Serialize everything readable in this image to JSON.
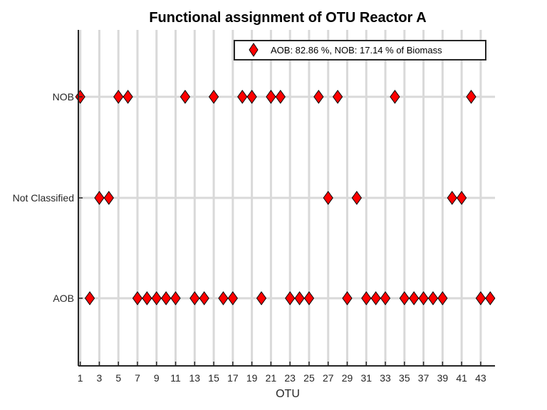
{
  "chart_data": {
    "type": "scatter",
    "title": "Functional assignment of OTU Reactor A",
    "xlabel": "OTU",
    "ylabel": "",
    "xlim": [
      0.8,
      44.5
    ],
    "x_ticks": [
      1,
      3,
      5,
      7,
      9,
      11,
      13,
      15,
      17,
      19,
      21,
      23,
      25,
      27,
      29,
      31,
      33,
      35,
      37,
      39,
      41,
      43
    ],
    "categories": [
      "AOB",
      "Not Classified",
      "NOB"
    ],
    "grid": true,
    "legend_position": "top-right",
    "marker_color": "#ff0000",
    "marker_edge_color": "#000000",
    "series": [
      {
        "name": "AOB: 82.86 %, NOB: 17.14 % of Biomass",
        "points": [
          {
            "x": 1,
            "y": "NOB"
          },
          {
            "x": 2,
            "y": "AOB"
          },
          {
            "x": 3,
            "y": "Not Classified"
          },
          {
            "x": 4,
            "y": "Not Classified"
          },
          {
            "x": 5,
            "y": "NOB"
          },
          {
            "x": 6,
            "y": "NOB"
          },
          {
            "x": 7,
            "y": "AOB"
          },
          {
            "x": 8,
            "y": "AOB"
          },
          {
            "x": 9,
            "y": "AOB"
          },
          {
            "x": 10,
            "y": "AOB"
          },
          {
            "x": 11,
            "y": "AOB"
          },
          {
            "x": 12,
            "y": "NOB"
          },
          {
            "x": 13,
            "y": "AOB"
          },
          {
            "x": 14,
            "y": "AOB"
          },
          {
            "x": 15,
            "y": "NOB"
          },
          {
            "x": 16,
            "y": "AOB"
          },
          {
            "x": 17,
            "y": "AOB"
          },
          {
            "x": 18,
            "y": "NOB"
          },
          {
            "x": 19,
            "y": "NOB"
          },
          {
            "x": 20,
            "y": "AOB"
          },
          {
            "x": 21,
            "y": "NOB"
          },
          {
            "x": 22,
            "y": "NOB"
          },
          {
            "x": 23,
            "y": "AOB"
          },
          {
            "x": 24,
            "y": "AOB"
          },
          {
            "x": 25,
            "y": "AOB"
          },
          {
            "x": 26,
            "y": "NOB"
          },
          {
            "x": 27,
            "y": "Not Classified"
          },
          {
            "x": 28,
            "y": "NOB"
          },
          {
            "x": 29,
            "y": "AOB"
          },
          {
            "x": 30,
            "y": "Not Classified"
          },
          {
            "x": 31,
            "y": "AOB"
          },
          {
            "x": 32,
            "y": "AOB"
          },
          {
            "x": 33,
            "y": "AOB"
          },
          {
            "x": 34,
            "y": "NOB"
          },
          {
            "x": 35,
            "y": "AOB"
          },
          {
            "x": 36,
            "y": "AOB"
          },
          {
            "x": 37,
            "y": "AOB"
          },
          {
            "x": 38,
            "y": "AOB"
          },
          {
            "x": 39,
            "y": "AOB"
          },
          {
            "x": 40,
            "y": "Not Classified"
          },
          {
            "x": 41,
            "y": "Not Classified"
          },
          {
            "x": 42,
            "y": "NOB"
          },
          {
            "x": 43,
            "y": "AOB"
          },
          {
            "x": 44,
            "y": "AOB"
          }
        ]
      }
    ]
  }
}
